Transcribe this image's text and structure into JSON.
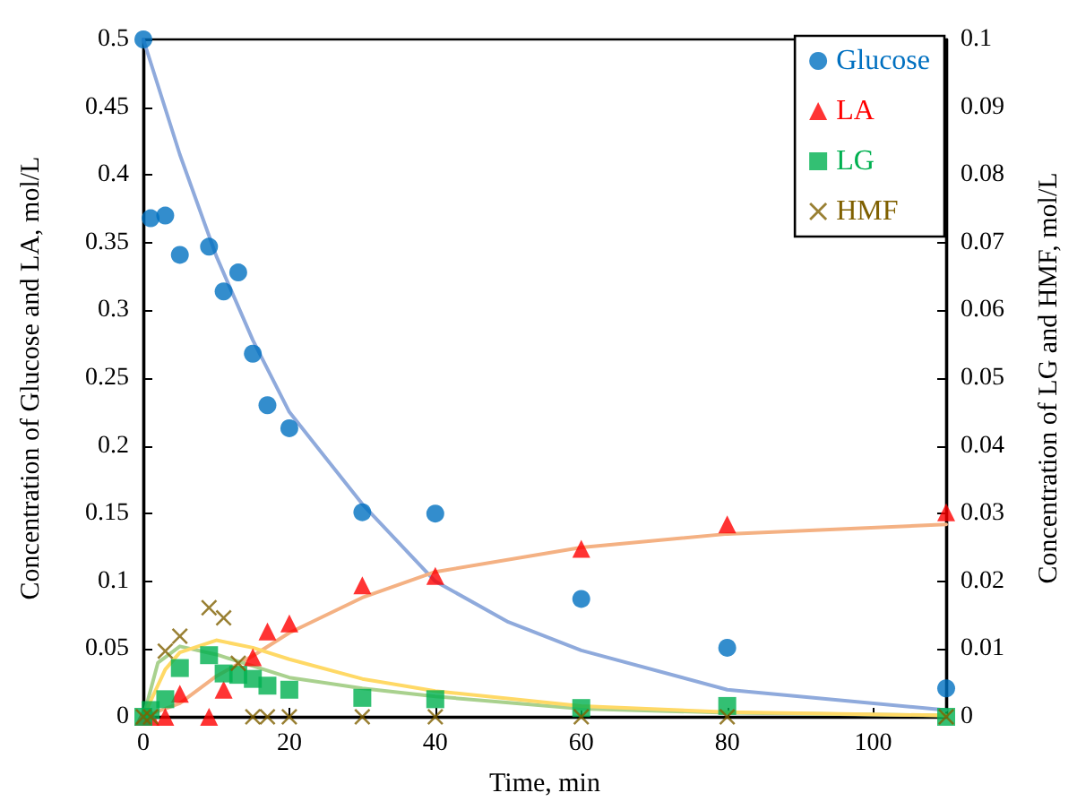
{
  "chart_data": {
    "type": "scatter",
    "xlabel": "Time, min",
    "ylabel": "Concentration of Glucose and LA, mol/L",
    "y2label": "Concentration of LG and HMF, mol/L",
    "xlim": [
      0,
      110
    ],
    "xticks": [
      0,
      20,
      40,
      60,
      80,
      100
    ],
    "ylim": [
      0,
      0.5
    ],
    "yticks": [
      0,
      0.05,
      0.1,
      0.15,
      0.2,
      0.25,
      0.3,
      0.35,
      0.4,
      0.45,
      0.5
    ],
    "y2lim": [
      0,
      0.1
    ],
    "y2ticks": [
      0,
      0.01,
      0.02,
      0.03,
      0.04,
      0.05,
      0.06,
      0.07,
      0.08,
      0.09,
      0.1
    ],
    "grid": false,
    "legend": "top right",
    "series": [
      {
        "type": "line",
        "marker": "none",
        "color": "#8faadc",
        "x": [
          0,
          5,
          10,
          15,
          20,
          30,
          40,
          50,
          60,
          80,
          110
        ],
        "values": [
          0.5,
          0.415,
          0.34,
          0.278,
          0.225,
          0.157,
          0.1,
          0.07,
          0.049,
          0.02,
          0.005
        ]
      },
      {
        "type": "line",
        "marker": "none",
        "color": "#f4b183",
        "x": [
          0,
          5,
          10,
          15,
          20,
          30,
          40,
          60,
          80,
          110
        ],
        "values": [
          0,
          0.01,
          0.03,
          0.045,
          0.062,
          0.088,
          0.107,
          0.125,
          0.135,
          0.142
        ]
      },
      {
        "type": "line",
        "marker": "none",
        "axis": "y2",
        "color": "#a9d18e",
        "x": [
          0,
          2,
          5,
          10,
          20,
          30,
          40,
          60,
          80,
          110
        ],
        "values": [
          0,
          0.008,
          0.0104,
          0.0092,
          0.0058,
          0.0042,
          0.003,
          0.0012,
          0.0006,
          0.0002
        ]
      },
      {
        "type": "line",
        "marker": "none",
        "axis": "y2",
        "color": "#ffd966",
        "x": [
          0,
          3,
          5,
          10,
          15,
          20,
          30,
          40,
          60,
          80,
          110
        ],
        "values": [
          0,
          0.007,
          0.0095,
          0.0113,
          0.0102,
          0.0085,
          0.0056,
          0.0038,
          0.0016,
          0.0007,
          0.0002
        ]
      },
      {
        "name": "Glucose",
        "marker": "circle",
        "color": "#0070c0",
        "x": [
          0,
          1,
          3,
          5,
          9,
          11,
          13,
          15,
          17,
          20,
          30,
          40,
          60,
          80,
          110
        ],
        "values": [
          0.5,
          0.368,
          0.37,
          0.341,
          0.347,
          0.314,
          0.328,
          0.268,
          0.23,
          0.213,
          0.151,
          0.15,
          0.087,
          0.051,
          0.021
        ]
      },
      {
        "name": "LA",
        "marker": "triangle",
        "color": "#ff0000",
        "x": [
          0,
          1,
          3,
          5,
          9,
          11,
          15,
          17,
          20,
          30,
          40,
          60,
          80,
          110
        ],
        "values": [
          0,
          0,
          0,
          0.017,
          0,
          0.02,
          0.044,
          0.063,
          0.069,
          0.097,
          0.104,
          0.124,
          0.142,
          0.151
        ]
      },
      {
        "name": "LG",
        "marker": "square",
        "axis": "y2",
        "color": "#00b050",
        "x": [
          0,
          1,
          3,
          5,
          9,
          11,
          13,
          15,
          17,
          20,
          30,
          40,
          60,
          80,
          110
        ],
        "values": [
          0,
          0.001,
          0.0026,
          0.0072,
          0.0091,
          0.0064,
          0.0062,
          0.0056,
          0.0046,
          0.004,
          0.0028,
          0.0026,
          0.0013,
          0.0016,
          0
        ]
      },
      {
        "name": "HMF",
        "marker": "cross",
        "axis": "y2",
        "color": "#7f6000",
        "x": [
          0,
          1,
          3,
          5,
          9,
          11,
          13,
          15,
          17,
          20,
          30,
          40,
          60,
          80,
          110
        ],
        "values": [
          0,
          0,
          0.0097,
          0.0119,
          0.0161,
          0.0146,
          0.0079,
          0,
          0,
          0,
          0,
          0,
          0,
          0,
          0
        ]
      }
    ]
  }
}
